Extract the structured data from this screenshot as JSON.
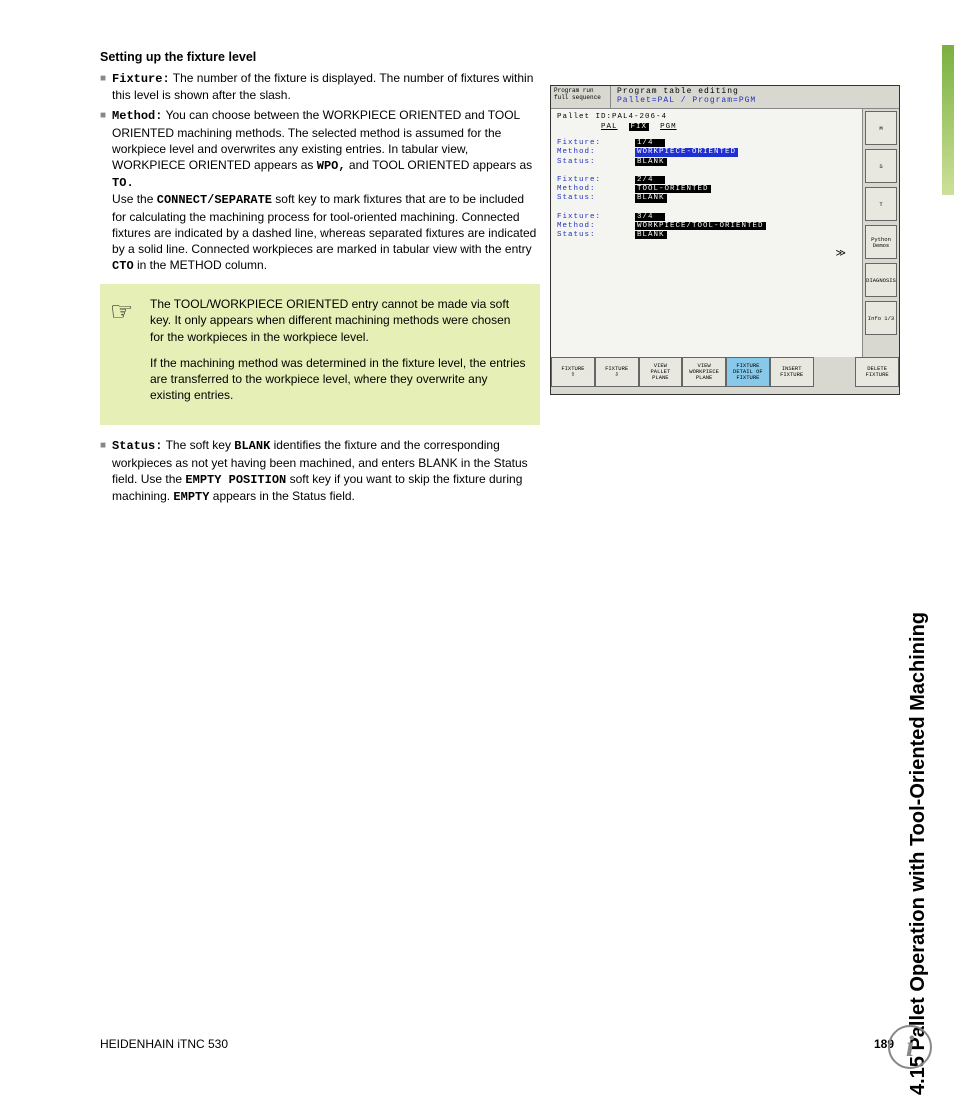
{
  "heading": "Setting up the fixture level",
  "bullets": {
    "fixture": {
      "label": "Fixture:",
      "text": " The number of the fixture is displayed. The number of fixtures within this level is shown after the slash."
    },
    "method": {
      "label": "Method:",
      "text_a": " You can choose between the WORKPIECE ORIENTED and TOOL ORIENTED machining methods. The selected method is assumed for the workpiece level and overwrites any existing entries. In tabular view, WORKPIECE ORIENTED appears as ",
      "wpo": "WPO,",
      "text_b": " and TOOL ORIENTED appears as ",
      "to": "TO.",
      "text_c": "Use the ",
      "connsep": "CONNECT/SEPARATE",
      "text_d": " soft key to mark fixtures that are to be included for calculating the machining process for tool-oriented machining. Connected fixtures are indicated by a dashed line, whereas separated fixtures are indicated by a solid line. Connected workpieces are marked in tabular view with the entry ",
      "cto": "CTO",
      "text_e": " in the METHOD column."
    },
    "status": {
      "label": "Status:",
      "text_a": " The soft key ",
      "blank": "BLANK",
      "text_b": " identifies the fixture and the corresponding workpieces as not yet having been machined, and enters BLANK in the Status field. Use the ",
      "empty_pos": "EMPTY POSITION",
      "text_c": " soft key if you want to skip the fixture during machining. ",
      "empty": "EMPTY",
      "text_d": " appears in the Status field."
    }
  },
  "note": {
    "p1": "The TOOL/WORKPIECE ORIENTED entry cannot be made via soft key. It only appears when different machining methods were chosen for the workpieces in the workpiece level.",
    "p2": "If the machining method was determined in the fixture level, the entries are transferred to the workpiece level, where they overwrite any existing entries."
  },
  "cnc": {
    "header_left_l1": "Program run",
    "header_left_l2": "full sequence",
    "header_title": "Program table editing",
    "header_sub": "Pallet=PAL / Program=PGM",
    "pallet_line": "Pallet ID:PAL4-206-4",
    "tab_pal": "PAL",
    "tab_fix": "FIX",
    "tab_pgm": "PGM",
    "groups": [
      {
        "fixture": "1/4",
        "method": "WORKPIECE-ORIENTED",
        "method_hl": true,
        "status": "BLANK"
      },
      {
        "fixture": "2/4",
        "method": "TOOL-ORIENTED",
        "method_hl": false,
        "status": "BLANK"
      },
      {
        "fixture": "3/4",
        "method": "WORKPIECE/TOOL-ORIENTED",
        "method_hl": false,
        "status": "BLANK"
      }
    ],
    "labels": {
      "fixture": "Fixture:",
      "method": "Method:",
      "status": "Status:"
    },
    "side_buttons": [
      "M",
      "S",
      "T",
      "Python\nDemos",
      "DIAGNOSIS",
      "Info 1/3"
    ],
    "softkeys": [
      {
        "t": "FIXTURE\n⇧",
        "hl": false
      },
      {
        "t": "FIXTURE\n⇩",
        "hl": false
      },
      {
        "t": "VIEW\nPALLET\nPLANE",
        "hl": false
      },
      {
        "t": "VIEW\nWORKPIECE\nPLANE",
        "hl": false
      },
      {
        "t": "FIXTURE\nDETAIL OF\nFIXTURE",
        "hl": true
      },
      {
        "t": "INSERT\nFIXTURE",
        "hl": false
      },
      {
        "t": "",
        "hl": false,
        "spacer": true
      },
      {
        "t": "DELETE\nFIXTURE",
        "hl": false
      }
    ]
  },
  "side_title": "4.15 Pallet Operation with Tool-Oriented Machining",
  "footer_left": "HEIDENHAIN iTNC 530",
  "footer_page": "189",
  "info_glyph": "i",
  "colors": {
    "note_bg": "#e6efb5",
    "cnc_blue": "#2030c0",
    "cnc_hl_blue": "#2030d0",
    "cnc_bg": "#d8d8d0",
    "cnc_main_bg": "#f4f4f0",
    "sk_hl": "#88c8e8",
    "accent_top": "#7ab040",
    "accent_bot": "#cde09a"
  }
}
